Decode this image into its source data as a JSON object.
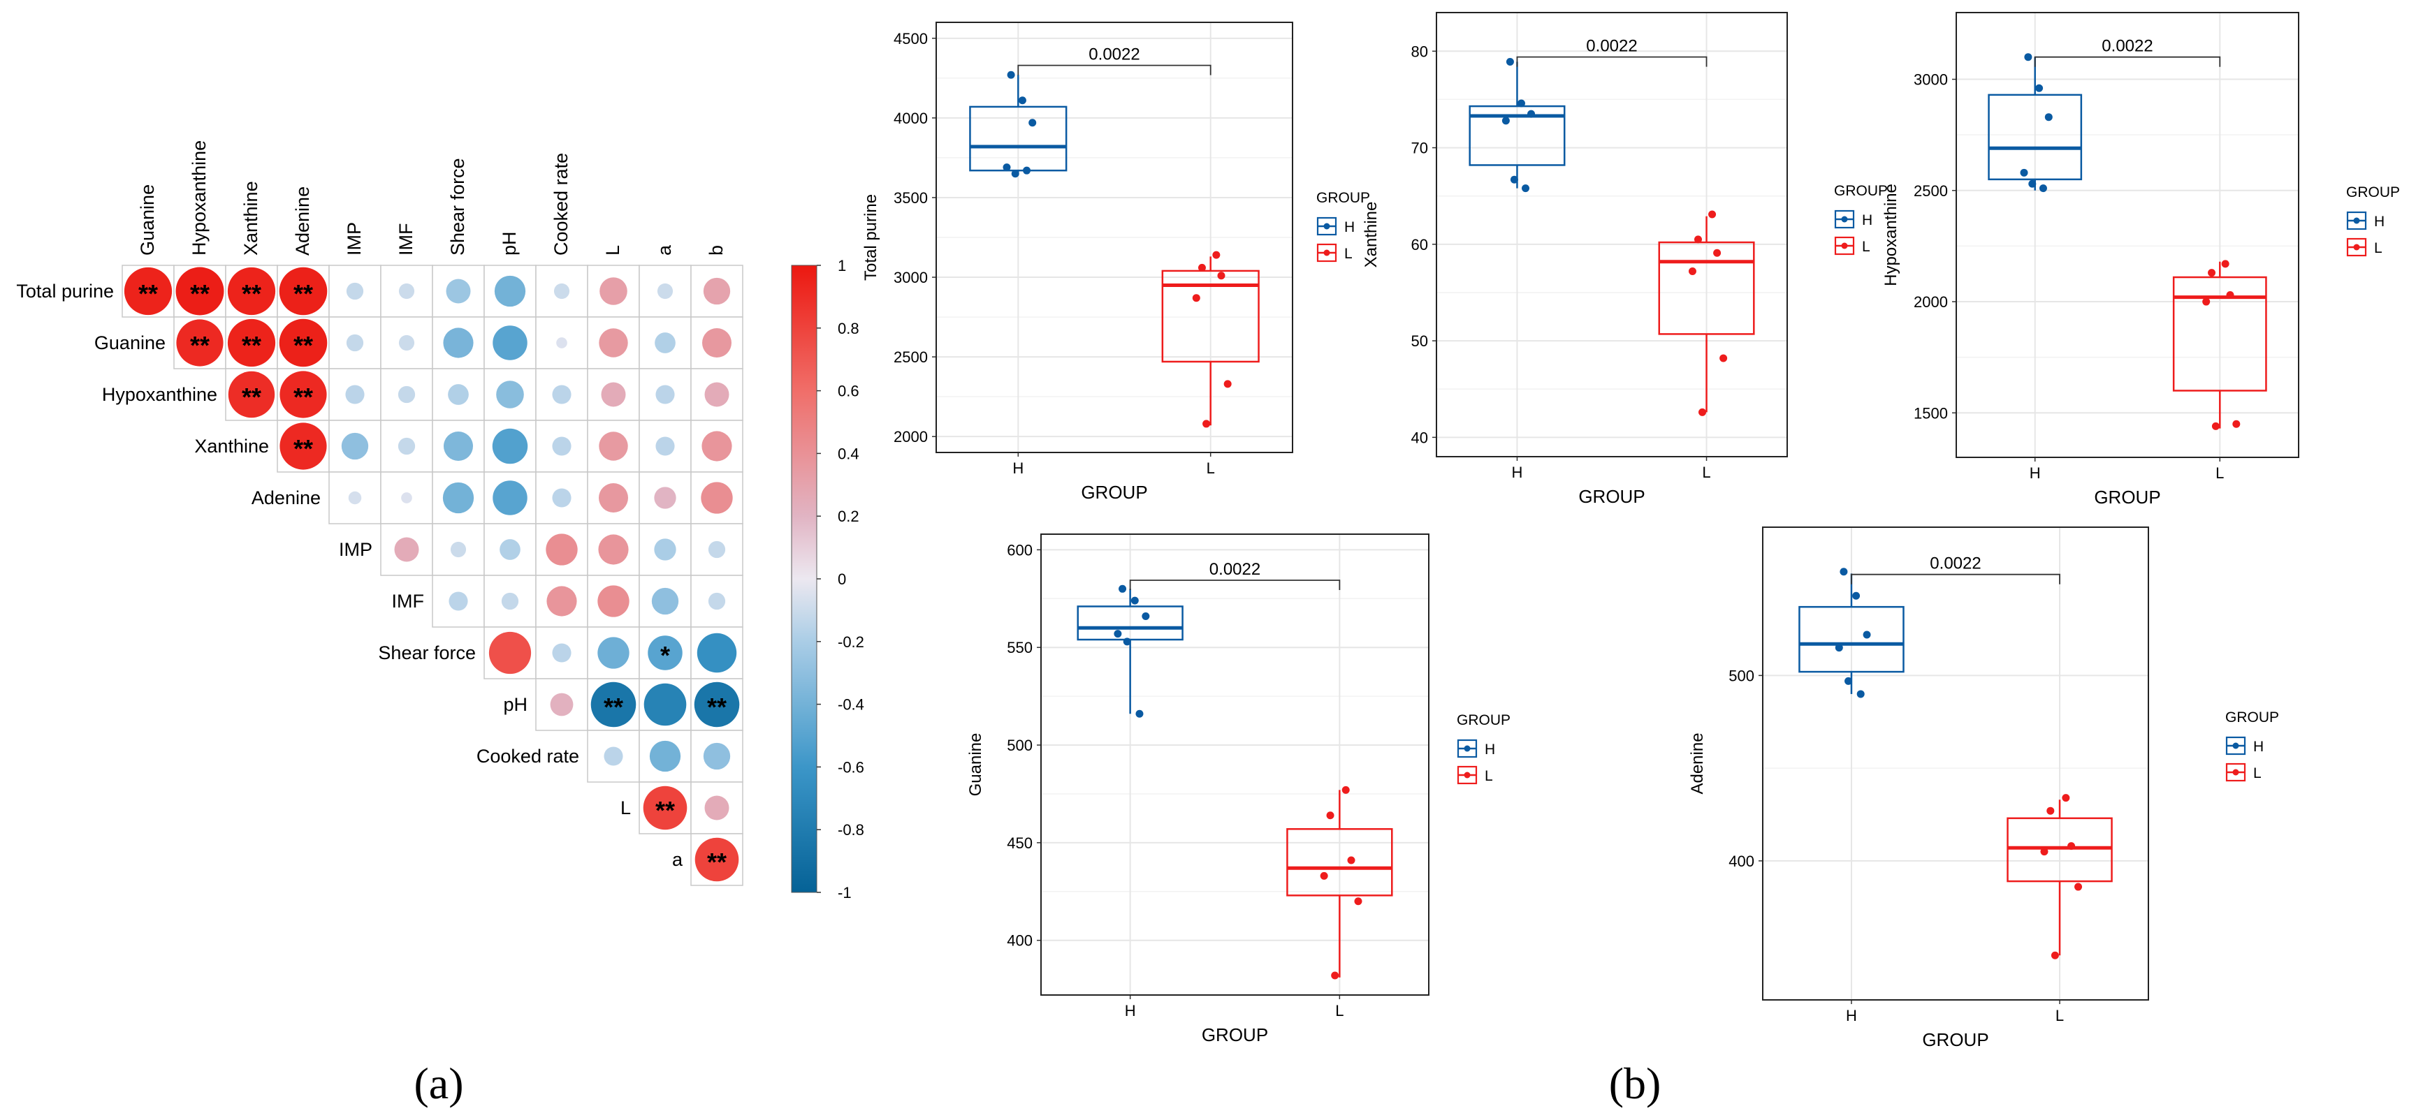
{
  "panel_labels": {
    "a": "(a)",
    "b": "(b)"
  },
  "colors": {
    "H": "#0a5aa2",
    "L": "#ee1c1c",
    "pos": "#e8201a",
    "neg": "#1a6fa8"
  },
  "chart_data": [
    {
      "type": "heatmap",
      "id": "corr",
      "variables": [
        "Total purine",
        "Guanine",
        "Hypoxanthine",
        "Xanthine",
        "Adenine",
        "IMP",
        "IMF",
        "Shear force",
        "pH",
        "Cooked rate",
        "L",
        "a",
        "b"
      ],
      "column_labels": [
        "Guanine",
        "Hypoxanthine",
        "Xanthine",
        "Adenine",
        "IMP",
        "IMF",
        "Shear force",
        "pH",
        "Cooked rate",
        "L",
        "a",
        "b"
      ],
      "row_labels": [
        "Total purine",
        "Guanine",
        "Hypoxanthine",
        "Xanthine",
        "Adenine",
        "IMP",
        "IMF",
        "Shear force",
        "pH",
        "Cooked rate",
        "L",
        "a"
      ],
      "values": [
        [
          0.95,
          0.97,
          0.95,
          0.96,
          -0.12,
          -0.1,
          -0.25,
          -0.4,
          -0.1,
          0.32,
          -0.1,
          0.3
        ],
        [
          0.92,
          0.95,
          0.96,
          -0.12,
          -0.1,
          -0.38,
          -0.5,
          -0.05,
          0.35,
          -0.18,
          0.36
        ],
        [
          0.9,
          0.92,
          -0.15,
          -0.12,
          -0.18,
          -0.32,
          -0.15,
          0.25,
          -0.15,
          0.25
        ],
        [
          0.92,
          -0.3,
          -0.12,
          -0.36,
          -0.52,
          -0.15,
          0.35,
          -0.15,
          0.38
        ],
        [
          -0.07,
          -0.05,
          -0.4,
          -0.5,
          -0.15,
          0.36,
          0.2,
          0.42
        ],
        [
          0.25,
          -0.1,
          -0.18,
          0.42,
          0.38,
          -0.2,
          -0.12
        ],
        [
          -0.15,
          -0.12,
          0.38,
          0.42,
          -0.3,
          -0.12
        ],
        [
          0.74,
          -0.15,
          -0.42,
          -0.5,
          -0.65
        ],
        [
          0.22,
          -0.85,
          -0.75,
          -0.85
        ],
        [
          -0.15,
          -0.4,
          -0.3
        ],
        [
          0.8,
          0.25
        ],
        [
          0.8
        ]
      ],
      "significance": [
        [
          "**",
          "**",
          "**",
          "**",
          "",
          "",
          "",
          "",
          "",
          "",
          "",
          ""
        ],
        [
          "**",
          "**",
          "**",
          "",
          "",
          "",
          "",
          "",
          "",
          "",
          ""
        ],
        [
          "**",
          "**",
          "",
          "",
          "",
          "",
          "",
          "",
          "",
          ""
        ],
        [
          "**",
          "",
          "",
          "",
          "",
          "",
          "",
          "",
          ""
        ],
        [
          "",
          "",
          "",
          "",
          "",
          "",
          "",
          ""
        ],
        [
          "",
          "",
          "",
          "",
          "",
          "",
          ""
        ],
        [
          "",
          "",
          "",
          "",
          "",
          ""
        ],
        [
          "",
          "",
          "",
          "*"
        ],
        [
          "",
          "**",
          "",
          "**"
        ],
        [
          "",
          "",
          ""
        ],
        [
          "**",
          ""
        ],
        [
          "**"
        ]
      ],
      "colorbar": {
        "min": -1,
        "max": 1,
        "ticks": [
          "1",
          "0.8",
          "0.6",
          "0.4",
          "0.2",
          "0",
          "-0.2",
          "-0.4",
          "-0.6",
          "-0.8",
          "-1"
        ]
      }
    },
    {
      "type": "box",
      "id": "total",
      "ylabel": "Total purine",
      "xlabel": "GROUP",
      "categories": [
        "H",
        "L"
      ],
      "ylim": [
        1900,
        4600
      ],
      "yticks": [
        2000,
        2500,
        3000,
        3500,
        4000,
        4500
      ],
      "p_value": "0.0022",
      "legend_title": "GROUP",
      "legend": [
        "H",
        "L"
      ],
      "series": [
        {
          "name": "H",
          "q1": 3670,
          "median": 3820,
          "q3": 4070,
          "lo": 3650,
          "hi": 4270,
          "points": [
            4270,
            4110,
            3970,
            3690,
            3650,
            3670
          ]
        },
        {
          "name": "L",
          "q1": 2470,
          "median": 2950,
          "q3": 3040,
          "lo": 2070,
          "hi": 3130,
          "points": [
            3140,
            3060,
            3010,
            2870,
            2330,
            2080
          ]
        }
      ]
    },
    {
      "type": "box",
      "id": "xanthine",
      "ylabel": "Xanthine",
      "xlabel": "GROUP",
      "categories": [
        "H",
        "L"
      ],
      "ylim": [
        38,
        84
      ],
      "yticks": [
        40,
        50,
        60,
        70,
        80
      ],
      "p_value": "0.0022",
      "legend_title": "GROUP",
      "legend": [
        "H",
        "L"
      ],
      "series": [
        {
          "name": "H",
          "q1": 68.2,
          "median": 73.3,
          "q3": 74.3,
          "lo": 65.8,
          "hi": 78.9,
          "points": [
            78.9,
            74.6,
            73.5,
            72.8,
            66.7,
            65.8
          ]
        },
        {
          "name": "L",
          "q1": 50.7,
          "median": 58.2,
          "q3": 60.2,
          "lo": 42.6,
          "hi": 62.9,
          "points": [
            63.1,
            60.5,
            59.1,
            57.2,
            48.2,
            42.6
          ]
        }
      ]
    },
    {
      "type": "box",
      "id": "hypox",
      "ylabel": "Hypoxanthine",
      "xlabel": "GROUP",
      "categories": [
        "H",
        "L"
      ],
      "ylim": [
        1300,
        3300
      ],
      "yticks": [
        1500,
        2000,
        2500,
        3000
      ],
      "p_value": "0.0022",
      "legend_title": "GROUP",
      "legend": [
        "H",
        "L"
      ],
      "series": [
        {
          "name": "H",
          "q1": 2550,
          "median": 2690,
          "q3": 2930,
          "lo": 2500,
          "hi": 3100,
          "points": [
            3100,
            2960,
            2830,
            2580,
            2530,
            2510
          ]
        },
        {
          "name": "L",
          "q1": 1600,
          "median": 2020,
          "q3": 2110,
          "lo": 1430,
          "hi": 2180,
          "points": [
            2170,
            2130,
            2030,
            2000,
            1450,
            1440
          ]
        }
      ]
    },
    {
      "type": "box",
      "id": "guanine",
      "ylabel": "Guanine",
      "xlabel": "GROUP",
      "categories": [
        "H",
        "L"
      ],
      "ylim": [
        372,
        608
      ],
      "yticks": [
        400,
        450,
        500,
        550,
        600
      ],
      "p_value": "0.0022",
      "legend_title": "GROUP",
      "legend": [
        "H",
        "L"
      ],
      "series": [
        {
          "name": "H",
          "q1": 554,
          "median": 560,
          "q3": 571,
          "lo": 516,
          "hi": 580,
          "points": [
            580,
            574,
            566,
            557,
            553,
            516
          ]
        },
        {
          "name": "L",
          "q1": 423,
          "median": 437,
          "q3": 457,
          "lo": 381,
          "hi": 477,
          "points": [
            477,
            464,
            441,
            433,
            420,
            382
          ]
        }
      ]
    },
    {
      "type": "box",
      "id": "adenine",
      "ylabel": "Adenine",
      "xlabel": "GROUP",
      "categories": [
        "H",
        "L"
      ],
      "ylim": [
        325,
        580
      ],
      "yticks": [
        400,
        500
      ],
      "p_value": "0.0022",
      "legend_title": "GROUP",
      "legend": [
        "H",
        "L"
      ],
      "series": [
        {
          "name": "H",
          "q1": 502,
          "median": 517,
          "q3": 537,
          "lo": 490,
          "hi": 555,
          "points": [
            556,
            543,
            522,
            515,
            497,
            490
          ]
        },
        {
          "name": "L",
          "q1": 389,
          "median": 407,
          "q3": 423,
          "lo": 349,
          "hi": 433,
          "points": [
            434,
            427,
            408,
            405,
            386,
            349
          ]
        }
      ]
    }
  ]
}
